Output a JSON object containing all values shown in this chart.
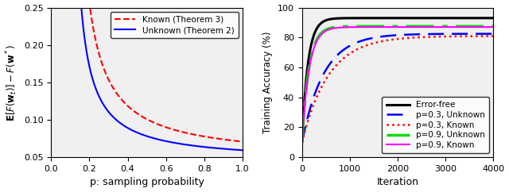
{
  "left_ylim": [
    0.05,
    0.25
  ],
  "left_xlim": [
    0,
    1.0
  ],
  "left_yticks": [
    0.05,
    0.1,
    0.15,
    0.2,
    0.25
  ],
  "left_xticks": [
    0,
    0.2,
    0.4,
    0.6,
    0.8,
    1.0
  ],
  "left_xlabel": "p: sampling probability",
  "right_ylim": [
    0,
    100
  ],
  "right_xlim": [
    0,
    4000
  ],
  "right_yticks": [
    0,
    20,
    40,
    60,
    80,
    100
  ],
  "right_xticks": [
    0,
    1000,
    2000,
    3000,
    4000
  ],
  "right_xlabel": "Iteration",
  "right_ylabel": "Training Accuracy (%)",
  "bg_color": "#f0f0f0",
  "known_color": "#FF0000",
  "unknown_color": "#0000FF",
  "ef_color": "#000000",
  "p03u_color": "#0000FF",
  "p03k_color": "#FF0000",
  "p09u_color": "#00DD00",
  "p09k_color": "#FF00FF",
  "known_A": 0.022,
  "known_p0": 0.095,
  "known_C": 0.0465,
  "unknown_A": 0.014,
  "unknown_p0": 0.09,
  "unknown_C": 0.044
}
